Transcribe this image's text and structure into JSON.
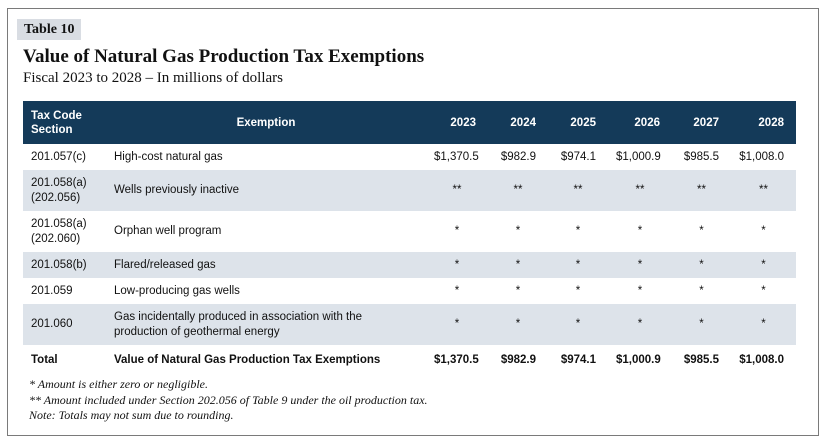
{
  "table_tag": "Table 10",
  "title": "Value of Natural Gas Production Tax Exemptions",
  "subtitle": "Fiscal 2023 to 2028 – In millions of dollars",
  "headers": {
    "code": "Tax Code Section",
    "exemption": "Exemption",
    "years": [
      "2023",
      "2024",
      "2025",
      "2026",
      "2027",
      "2028"
    ]
  },
  "rows": [
    {
      "code": "201.057(c)",
      "exemption": "High-cost natural gas",
      "values": [
        "$1,370.5",
        "$982.9",
        "$974.1",
        "$1,000.9",
        "$985.5",
        "$1,008.0"
      ]
    },
    {
      "code": "201.058(a) (202.056)",
      "exemption": "Wells previously inactive",
      "values": [
        "**",
        "**",
        "**",
        "**",
        "**",
        "**"
      ]
    },
    {
      "code": "201.058(a) (202.060)",
      "exemption": "Orphan well program",
      "values": [
        "*",
        "*",
        "*",
        "*",
        "*",
        "*"
      ]
    },
    {
      "code": "201.058(b)",
      "exemption": "Flared/released gas",
      "values": [
        "*",
        "*",
        "*",
        "*",
        "*",
        "*"
      ]
    },
    {
      "code": "201.059",
      "exemption": "Low-producing gas wells",
      "values": [
        "*",
        "*",
        "*",
        "*",
        "*",
        "*"
      ]
    },
    {
      "code": "201.060",
      "exemption": "Gas incidentally produced in association with the production of geothermal energy",
      "values": [
        "*",
        "*",
        "*",
        "*",
        "*",
        "*"
      ]
    }
  ],
  "total": {
    "label": "Total",
    "exemption": "Value of Natural Gas Production Tax Exemptions",
    "values": [
      "$1,370.5",
      "$982.9",
      "$974.1",
      "$1,000.9",
      "$985.5",
      "$1,008.0"
    ]
  },
  "notes": [
    "* Amount is either zero or negligible.",
    "** Amount included under Section 202.056 of Table 9 under the oil production tax.",
    "Note: Totals may not sum due to rounding."
  ],
  "colors": {
    "header_bg": "#143a59",
    "shade_row": "#dde3ea",
    "tag_bg": "#d9dde3"
  }
}
